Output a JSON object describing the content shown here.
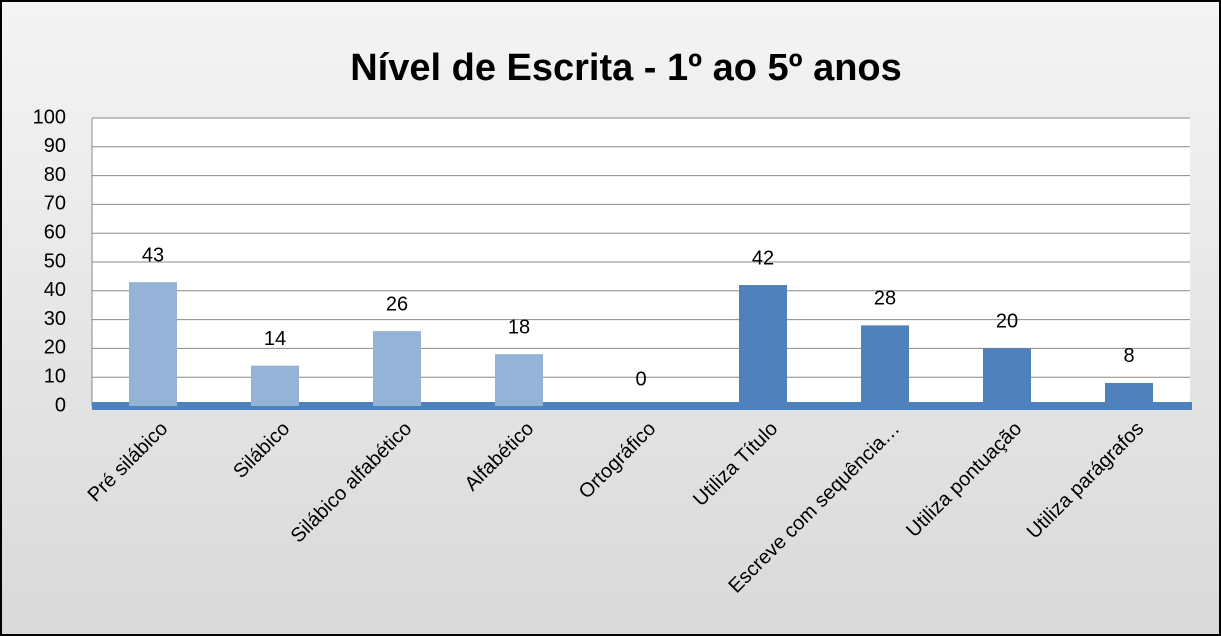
{
  "chart_data": {
    "type": "bar",
    "title": "Nível de Escrita - 1º ao 5º anos",
    "categories": [
      "Pré silábico",
      "Silábico",
      "Silábico alfabético",
      "Alfabético",
      "Ortográfico",
      "Utiliza Título",
      "Escreve com sequência…",
      "Utiliza pontuação",
      "Utiliza parágrafos"
    ],
    "values": [
      43,
      14,
      26,
      18,
      0,
      42,
      28,
      20,
      8
    ],
    "colors": [
      "#95b3d7",
      "#95b3d7",
      "#95b3d7",
      "#95b3d7",
      "#95b3d7",
      "#4f81bd",
      "#4f81bd",
      "#4f81bd",
      "#4f81bd"
    ],
    "ylim": [
      0,
      100
    ],
    "yticks": [
      0,
      10,
      20,
      30,
      40,
      50,
      60,
      70,
      80,
      90,
      100
    ],
    "grid": true
  }
}
